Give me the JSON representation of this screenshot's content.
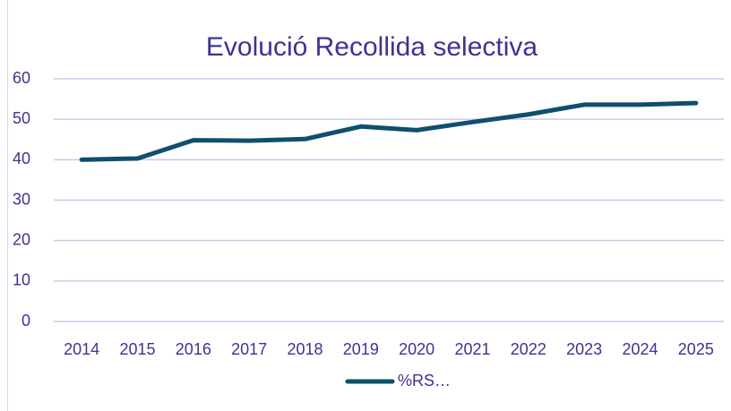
{
  "chart_data": {
    "type": "line",
    "title": "Evolució Recollida selectiva",
    "categories": [
      "2014",
      "2015",
      "2016",
      "2017",
      "2018",
      "2019",
      "2020",
      "2021",
      "2022",
      "2023",
      "2024",
      "2025"
    ],
    "series": [
      {
        "name": "%RS…",
        "color": "#0f4f6e",
        "values": [
          40.0,
          40.3,
          44.8,
          44.7,
          45.1,
          48.2,
          47.3,
          49.3,
          51.2,
          53.6,
          53.6,
          54.0
        ]
      }
    ],
    "ylim": [
      0,
      60
    ],
    "yticks": [
      0,
      10,
      20,
      30,
      40,
      50,
      60
    ],
    "grid": true,
    "legend": "bottom"
  }
}
